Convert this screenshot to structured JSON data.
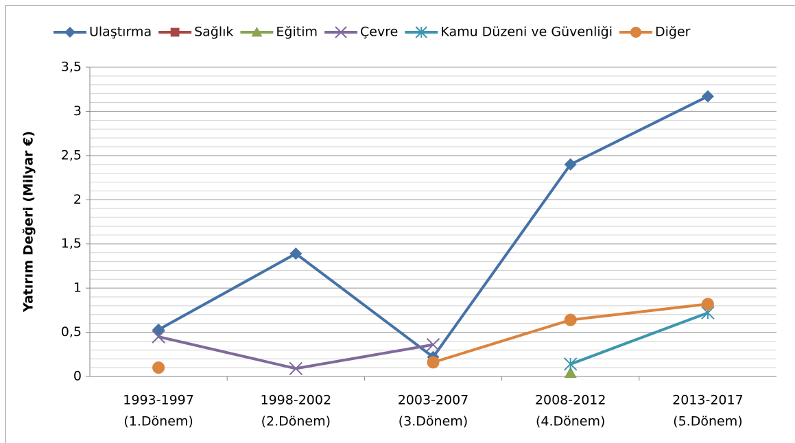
{
  "chart_data": {
    "type": "line",
    "y_label": "Yatırım Değeri (Milyar €)",
    "categories": [
      [
        "1993-1997",
        "(1.Dönem)"
      ],
      [
        "1998-2002",
        "(2.Dönem)"
      ],
      [
        "2003-2007",
        "(3.Dönem)"
      ],
      [
        "2008-2012",
        "(4.Dönem)"
      ],
      [
        "2013-2017",
        "(5.Dönem)"
      ]
    ],
    "series": [
      {
        "name": "Ulaştırma",
        "color": "#4572a7",
        "marker": "diamond",
        "values": [
          0.53,
          1.39,
          0.22,
          2.4,
          3.17
        ]
      },
      {
        "name": "Sağlık",
        "color": "#aa4643",
        "marker": "square",
        "values": [
          null,
          null,
          null,
          null,
          null
        ]
      },
      {
        "name": "Eğitim",
        "color": "#89a54e",
        "marker": "triangle",
        "values": [
          null,
          null,
          null,
          0.04,
          null
        ]
      },
      {
        "name": "Çevre",
        "color": "#80699b",
        "marker": "x",
        "values": [
          0.45,
          0.09,
          0.36,
          null,
          null
        ]
      },
      {
        "name": "Kamu Düzeni ve Güvenliği",
        "color": "#3d96ae",
        "marker": "star",
        "values": [
          null,
          null,
          null,
          0.14,
          0.72
        ]
      },
      {
        "name": "Diğer",
        "color": "#db843d",
        "marker": "circle",
        "values": [
          0.1,
          null,
          0.16,
          0.64,
          0.82
        ]
      }
    ],
    "ylim": [
      0,
      3.5
    ],
    "yticks": [
      0,
      {
        "value": 0.5,
        "label": "0,5"
      },
      1,
      {
        "value": 1.5,
        "label": "1,5"
      },
      2,
      {
        "value": 2.5,
        "label": "2,5"
      },
      3,
      {
        "value": 3.5,
        "label": "3,5"
      }
    ],
    "minor_step": 0.1,
    "grid": true,
    "legend": "top"
  }
}
